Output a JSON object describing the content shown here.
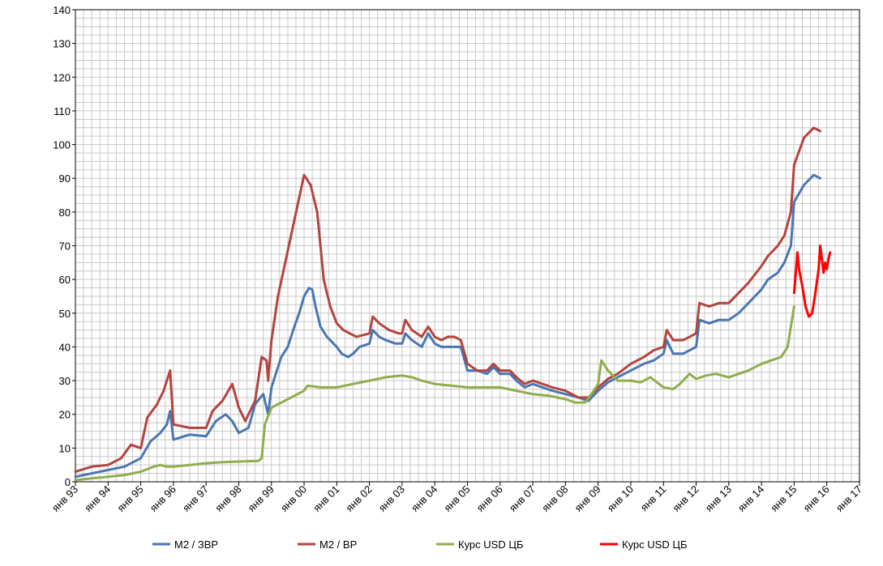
{
  "chart_data": {
    "type": "line",
    "title": "",
    "xlabel": "",
    "ylabel": "",
    "ylim": [
      0,
      140
    ],
    "y_ticks": [
      0,
      10,
      20,
      30,
      40,
      50,
      60,
      70,
      80,
      90,
      100,
      110,
      120,
      130,
      140
    ],
    "x_tick_labels": [
      "янв 93",
      "янв 94",
      "янв 95",
      "янв 96",
      "янв 97",
      "янв 98",
      "янв 99",
      "янв 00",
      "янв 01",
      "янв 02",
      "янв 03",
      "янв 04",
      "янв 05",
      "янв 06",
      "янв 07",
      "янв 08",
      "янв 09",
      "янв 10",
      "янв 11",
      "янв 12",
      "янв 13",
      "янв 14",
      "янв 15",
      "янв 16",
      "янв 17"
    ],
    "x_range": [
      1993.0,
      2017.0
    ],
    "grid": true,
    "legend_position": "bottom",
    "series": [
      {
        "name": "М2 / ЗВР",
        "color": "#4a77b2",
        "points": [
          [
            1993.0,
            1.5
          ],
          [
            1993.5,
            2.5
          ],
          [
            1994.0,
            3.5
          ],
          [
            1994.5,
            4.5
          ],
          [
            1995.0,
            7
          ],
          [
            1995.3,
            12
          ],
          [
            1995.6,
            14.5
          ],
          [
            1995.8,
            17
          ],
          [
            1995.9,
            21
          ],
          [
            1996.0,
            12.5
          ],
          [
            1996.5,
            14
          ],
          [
            1997.0,
            13.5
          ],
          [
            1997.3,
            18
          ],
          [
            1997.6,
            20
          ],
          [
            1997.8,
            18
          ],
          [
            1998.0,
            14.5
          ],
          [
            1998.3,
            16
          ],
          [
            1998.5,
            23
          ],
          [
            1998.75,
            26
          ],
          [
            1998.9,
            20
          ],
          [
            1999.0,
            28
          ],
          [
            1999.3,
            37
          ],
          [
            1999.5,
            40
          ],
          [
            1999.7,
            46
          ],
          [
            1999.85,
            50
          ],
          [
            2000.0,
            55
          ],
          [
            2000.15,
            57.5
          ],
          [
            2000.25,
            57
          ],
          [
            2000.35,
            52
          ],
          [
            2000.5,
            46
          ],
          [
            2000.7,
            43
          ],
          [
            2000.85,
            41.5
          ],
          [
            2001.0,
            40
          ],
          [
            2001.15,
            38
          ],
          [
            2001.35,
            37
          ],
          [
            2001.5,
            38
          ],
          [
            2001.7,
            40
          ],
          [
            2002.0,
            41
          ],
          [
            2002.1,
            45
          ],
          [
            2002.3,
            43
          ],
          [
            2002.5,
            42
          ],
          [
            2002.8,
            41
          ],
          [
            2003.0,
            41
          ],
          [
            2003.1,
            44
          ],
          [
            2003.3,
            42
          ],
          [
            2003.6,
            40
          ],
          [
            2003.8,
            44
          ],
          [
            2004.0,
            41
          ],
          [
            2004.2,
            40
          ],
          [
            2004.4,
            40
          ],
          [
            2004.6,
            40
          ],
          [
            2004.8,
            40
          ],
          [
            2005.0,
            33
          ],
          [
            2005.3,
            33
          ],
          [
            2005.6,
            32
          ],
          [
            2005.8,
            34
          ],
          [
            2006.0,
            32
          ],
          [
            2006.3,
            32
          ],
          [
            2006.5,
            30
          ],
          [
            2006.75,
            28
          ],
          [
            2007.0,
            29
          ],
          [
            2007.3,
            28
          ],
          [
            2007.6,
            27
          ],
          [
            2008.0,
            26
          ],
          [
            2008.4,
            25
          ],
          [
            2008.7,
            24
          ],
          [
            2009.0,
            27
          ],
          [
            2009.3,
            29.5
          ],
          [
            2009.6,
            31
          ],
          [
            2010.0,
            33
          ],
          [
            2010.4,
            35
          ],
          [
            2010.7,
            36
          ],
          [
            2011.0,
            38
          ],
          [
            2011.1,
            42
          ],
          [
            2011.3,
            38
          ],
          [
            2011.6,
            38
          ],
          [
            2012.0,
            40
          ],
          [
            2012.1,
            48
          ],
          [
            2012.4,
            47
          ],
          [
            2012.7,
            48
          ],
          [
            2013.0,
            48
          ],
          [
            2013.3,
            50
          ],
          [
            2013.6,
            53
          ],
          [
            2014.0,
            57
          ],
          [
            2014.2,
            60
          ],
          [
            2014.5,
            62
          ],
          [
            2014.7,
            65
          ],
          [
            2014.9,
            70
          ],
          [
            2015.0,
            83
          ],
          [
            2015.3,
            88
          ],
          [
            2015.6,
            91
          ],
          [
            2015.8,
            90
          ]
        ]
      },
      {
        "name": "М2 / ВР",
        "color": "#b34440",
        "points": [
          [
            1993.0,
            3
          ],
          [
            1993.5,
            4.5
          ],
          [
            1994.0,
            5
          ],
          [
            1994.4,
            7
          ],
          [
            1994.7,
            11
          ],
          [
            1995.0,
            10
          ],
          [
            1995.2,
            19
          ],
          [
            1995.5,
            23
          ],
          [
            1995.7,
            27
          ],
          [
            1995.9,
            33
          ],
          [
            1996.0,
            17
          ],
          [
            1996.5,
            16
          ],
          [
            1997.0,
            16
          ],
          [
            1997.2,
            21
          ],
          [
            1997.5,
            24
          ],
          [
            1997.8,
            29
          ],
          [
            1998.0,
            22
          ],
          [
            1998.2,
            18
          ],
          [
            1998.5,
            24
          ],
          [
            1998.7,
            37
          ],
          [
            1998.85,
            36
          ],
          [
            1998.9,
            30
          ],
          [
            1999.0,
            42
          ],
          [
            1999.2,
            55
          ],
          [
            1999.4,
            64
          ],
          [
            1999.6,
            73
          ],
          [
            1999.8,
            82
          ],
          [
            2000.0,
            91
          ],
          [
            2000.2,
            88
          ],
          [
            2000.4,
            80
          ],
          [
            2000.6,
            60
          ],
          [
            2000.8,
            52
          ],
          [
            2001.0,
            47
          ],
          [
            2001.2,
            45
          ],
          [
            2001.4,
            44
          ],
          [
            2001.6,
            43
          ],
          [
            2002.0,
            44
          ],
          [
            2002.1,
            49
          ],
          [
            2002.3,
            47
          ],
          [
            2002.6,
            45
          ],
          [
            2002.9,
            44
          ],
          [
            2003.0,
            44
          ],
          [
            2003.1,
            48
          ],
          [
            2003.3,
            45
          ],
          [
            2003.6,
            43
          ],
          [
            2003.8,
            46
          ],
          [
            2004.0,
            43
          ],
          [
            2004.2,
            42
          ],
          [
            2004.4,
            43
          ],
          [
            2004.6,
            43
          ],
          [
            2004.8,
            42
          ],
          [
            2005.0,
            35
          ],
          [
            2005.3,
            33
          ],
          [
            2005.6,
            33
          ],
          [
            2005.8,
            35
          ],
          [
            2006.0,
            33
          ],
          [
            2006.3,
            33
          ],
          [
            2006.5,
            31
          ],
          [
            2006.75,
            29
          ],
          [
            2007.0,
            30
          ],
          [
            2007.3,
            29
          ],
          [
            2007.6,
            28
          ],
          [
            2008.0,
            27
          ],
          [
            2008.4,
            25
          ],
          [
            2008.7,
            25
          ],
          [
            2009.0,
            28
          ],
          [
            2009.3,
            30.5
          ],
          [
            2009.6,
            32
          ],
          [
            2010.0,
            35
          ],
          [
            2010.4,
            37
          ],
          [
            2010.7,
            39
          ],
          [
            2011.0,
            40
          ],
          [
            2011.1,
            45
          ],
          [
            2011.3,
            42
          ],
          [
            2011.6,
            42
          ],
          [
            2012.0,
            44
          ],
          [
            2012.1,
            53
          ],
          [
            2012.4,
            52
          ],
          [
            2012.7,
            53
          ],
          [
            2013.0,
            53
          ],
          [
            2013.3,
            56
          ],
          [
            2013.6,
            59
          ],
          [
            2014.0,
            64
          ],
          [
            2014.2,
            67
          ],
          [
            2014.5,
            70
          ],
          [
            2014.7,
            73
          ],
          [
            2014.9,
            80
          ],
          [
            2015.0,
            94
          ],
          [
            2015.3,
            102
          ],
          [
            2015.6,
            105
          ],
          [
            2015.8,
            104
          ]
        ]
      },
      {
        "name": "Курс USD ЦБ",
        "color": "#90ad4c",
        "points": [
          [
            1993.0,
            0.5
          ],
          [
            1993.5,
            1
          ],
          [
            1994.0,
            1.5
          ],
          [
            1994.5,
            2
          ],
          [
            1995.0,
            3
          ],
          [
            1995.4,
            4.5
          ],
          [
            1995.6,
            5
          ],
          [
            1995.8,
            4.5
          ],
          [
            1996.0,
            4.5
          ],
          [
            1996.5,
            5
          ],
          [
            1997.0,
            5.5
          ],
          [
            1997.5,
            5.8
          ],
          [
            1998.0,
            6
          ],
          [
            1998.6,
            6.2
          ],
          [
            1998.7,
            7
          ],
          [
            1998.8,
            17
          ],
          [
            1999.0,
            22
          ],
          [
            1999.2,
            23
          ],
          [
            1999.5,
            24.5
          ],
          [
            2000.0,
            27
          ],
          [
            2000.1,
            28.5
          ],
          [
            2000.5,
            28
          ],
          [
            2001.0,
            28
          ],
          [
            2001.5,
            29
          ],
          [
            2002.0,
            30
          ],
          [
            2002.5,
            31
          ],
          [
            2003.0,
            31.5
          ],
          [
            2003.3,
            31
          ],
          [
            2003.6,
            30
          ],
          [
            2004.0,
            29
          ],
          [
            2004.5,
            28.5
          ],
          [
            2005.0,
            28
          ],
          [
            2005.5,
            28
          ],
          [
            2006.0,
            28
          ],
          [
            2006.5,
            27
          ],
          [
            2007.0,
            26
          ],
          [
            2007.5,
            25.5
          ],
          [
            2008.0,
            24.5
          ],
          [
            2008.3,
            23.5
          ],
          [
            2008.6,
            23.5
          ],
          [
            2008.8,
            26
          ],
          [
            2009.0,
            29
          ],
          [
            2009.1,
            36
          ],
          [
            2009.3,
            33
          ],
          [
            2009.6,
            30
          ],
          [
            2010.0,
            30
          ],
          [
            2010.3,
            29.5
          ],
          [
            2010.6,
            31
          ],
          [
            2011.0,
            28
          ],
          [
            2011.3,
            27.5
          ],
          [
            2011.5,
            29
          ],
          [
            2011.8,
            32
          ],
          [
            2012.0,
            30.5
          ],
          [
            2012.3,
            31.5
          ],
          [
            2012.6,
            32
          ],
          [
            2013.0,
            31
          ],
          [
            2013.3,
            32
          ],
          [
            2013.6,
            33
          ],
          [
            2014.0,
            35
          ],
          [
            2014.3,
            36
          ],
          [
            2014.6,
            37
          ],
          [
            2014.8,
            40
          ],
          [
            2014.9,
            46
          ],
          [
            2015.0,
            52
          ]
        ]
      },
      {
        "name": "Курс USD ЦБ",
        "color": "#ff0000",
        "points": [
          [
            2015.0,
            56
          ],
          [
            2015.05,
            62
          ],
          [
            2015.1,
            68
          ],
          [
            2015.15,
            63
          ],
          [
            2015.25,
            58
          ],
          [
            2015.35,
            52
          ],
          [
            2015.45,
            49
          ],
          [
            2015.55,
            50
          ],
          [
            2015.65,
            56
          ],
          [
            2015.75,
            63
          ],
          [
            2015.8,
            70
          ],
          [
            2015.85,
            66
          ],
          [
            2015.9,
            62
          ],
          [
            2015.95,
            65
          ],
          [
            2016.0,
            63
          ],
          [
            2016.05,
            66
          ],
          [
            2016.1,
            68
          ]
        ]
      }
    ]
  }
}
